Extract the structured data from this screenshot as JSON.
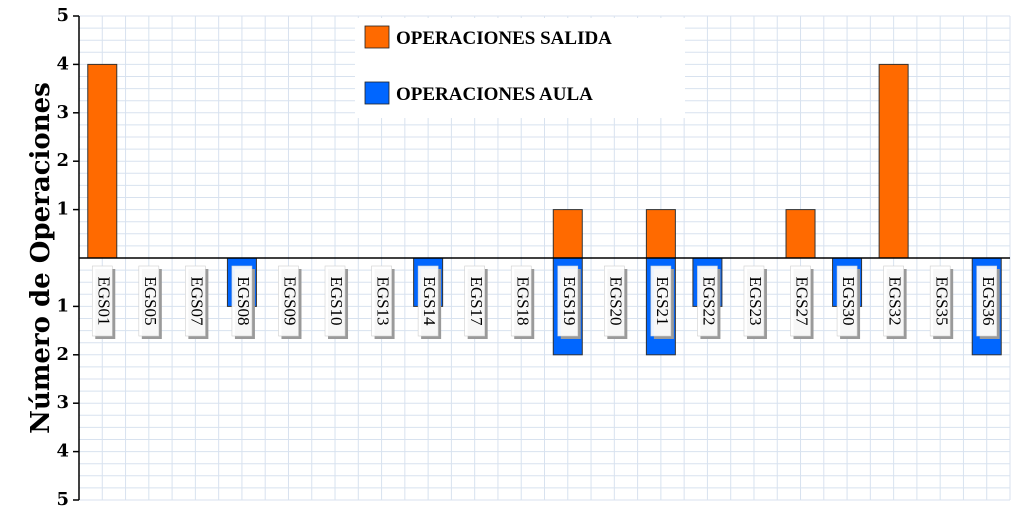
{
  "chart_data": {
    "type": "bar",
    "ylabel": "Número de Operaciones",
    "ylim_top": [
      0,
      5
    ],
    "ylim_bottom": [
      0,
      5
    ],
    "yticks_top": [
      "1",
      "2",
      "3",
      "4",
      "5"
    ],
    "yticks_bottom": [
      "1",
      "2",
      "3",
      "4",
      "5"
    ],
    "categories": [
      "EGS01",
      "EGS05",
      "EGS07",
      "EGS08",
      "EGS09",
      "EGS10",
      "EGS13",
      "EGS14",
      "EGS17",
      "EGS18",
      "EGS19",
      "EGS20",
      "EGS21",
      "EGS22",
      "EGS23",
      "EGS27",
      "EGS30",
      "EGS32",
      "EGS35",
      "EGS36"
    ],
    "series": [
      {
        "name": "OPERACIONES SALIDA",
        "direction": "up",
        "color": "#ff6a00",
        "values": [
          4,
          0,
          0,
          0,
          0,
          0,
          0,
          0,
          0,
          0,
          1,
          0,
          1,
          0,
          0,
          1,
          0,
          4,
          0,
          0
        ]
      },
      {
        "name": "OPERACIONES AULA",
        "direction": "down",
        "color": "#0066ff",
        "values": [
          0,
          0,
          0,
          1,
          0,
          0,
          0,
          1,
          0,
          0,
          2,
          0,
          2,
          1,
          0,
          0,
          1,
          0,
          0,
          2
        ]
      }
    ],
    "grid": true,
    "legend": "top-center"
  }
}
